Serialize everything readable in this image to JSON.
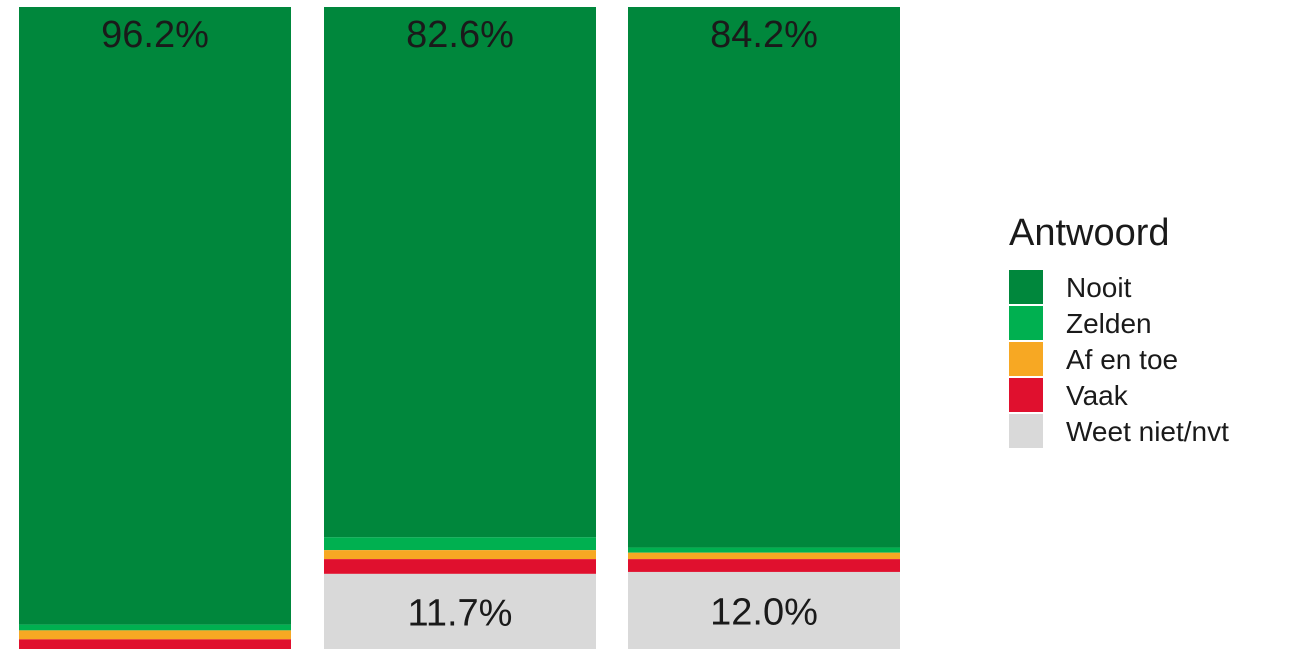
{
  "chart_data": {
    "type": "bar",
    "stacked": true,
    "normalized": true,
    "categories": [
      "",
      "",
      ""
    ],
    "series": [
      {
        "name": "Nooit",
        "color": "#00873C",
        "values": [
          96.2,
          82.6,
          84.2
        ]
      },
      {
        "name": "Zelden",
        "color": "#00B050",
        "values": [
          0.9,
          2.0,
          0.8
        ]
      },
      {
        "name": "Af en toe",
        "color": "#F7A823",
        "values": [
          1.4,
          1.4,
          1.0
        ]
      },
      {
        "name": "Vaak",
        "color": "#E0102E",
        "values": [
          1.5,
          2.3,
          2.0
        ]
      },
      {
        "name": "Weet niet/nvt",
        "color": "#D9D9D9",
        "values": [
          0.0,
          11.7,
          12.0
        ]
      }
    ],
    "data_labels": [
      [
        {
          "series": "Nooit",
          "text": "96.2%"
        }
      ],
      [
        {
          "series": "Nooit",
          "text": "82.6%"
        },
        {
          "series": "Weet niet/nvt",
          "text": "11.7%"
        }
      ],
      [
        {
          "series": "Nooit",
          "text": "84.2%"
        },
        {
          "series": "Weet niet/nvt",
          "text": "12.0%"
        }
      ]
    ],
    "stack_order_top_to_bottom": [
      "Nooit",
      "Zelden",
      "Af en toe",
      "Vaak",
      "Weet niet/nvt"
    ],
    "ylim": [
      0,
      100
    ],
    "grid": false,
    "legend": {
      "title": "Antwoord",
      "position": "right",
      "items": [
        "Nooit",
        "Zelden",
        "Af en toe",
        "Vaak",
        "Weet niet/nvt"
      ]
    }
  }
}
